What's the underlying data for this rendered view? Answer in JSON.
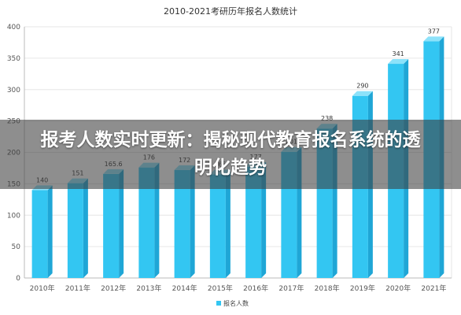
{
  "overlay": {
    "title": "报考人数实时更新：揭秘现代教育报名系统的透明化趋势"
  },
  "chart_data": {
    "type": "bar",
    "title": "2010-2021考研历年报名人数统计",
    "categories": [
      "2010年",
      "2011年",
      "2012年",
      "2013年",
      "2014年",
      "2015年",
      "2016年",
      "2017年",
      "2018年",
      "2019年",
      "2020年",
      "2021年"
    ],
    "series": [
      {
        "name": "报名人数",
        "values": [
          140,
          151,
          165.6,
          176,
          172,
          165,
          177,
          201,
          238,
          290,
          341,
          377
        ],
        "data_labels": [
          "140",
          "151",
          "165.6",
          "176",
          "172",
          "165",
          "177",
          "201",
          "238",
          "290",
          "341",
          "377"
        ]
      }
    ],
    "ylim": [
      0,
      400
    ],
    "yticks": [
      0,
      50,
      100,
      150,
      200,
      250,
      300,
      350,
      400
    ],
    "grid": true,
    "legend_position": "bottom",
    "colors": {
      "bar_front": "#33C6F2",
      "bar_side": "#1FA6D6",
      "bar_top": "#8CE2FA",
      "grid": "#E6E6E6",
      "axis": "#BBBBBB"
    }
  }
}
